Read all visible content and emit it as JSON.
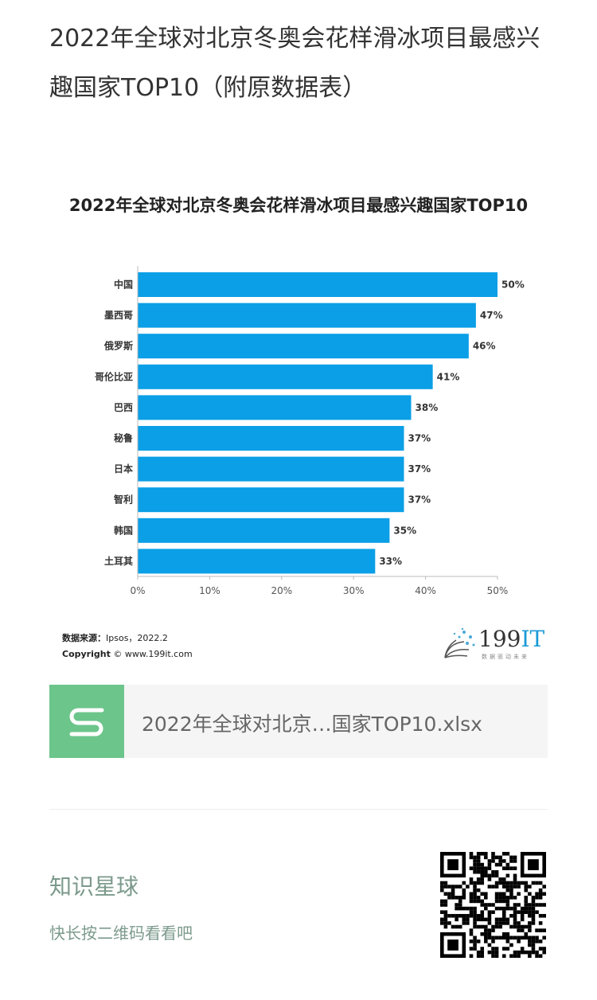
{
  "article": {
    "title": "2022年全球对北京冬奥会花样滑冰项目最感兴趣国家TOP10（附原数据表）"
  },
  "chart_data": {
    "type": "bar",
    "orientation": "horizontal",
    "title": "2022年全球对北京冬奥会花样滑冰项目最感兴趣国家TOP10",
    "categories": [
      "中国",
      "墨西哥",
      "俄罗斯",
      "哥伦比亚",
      "巴西",
      "秘鲁",
      "日本",
      "智利",
      "韩国",
      "土耳其"
    ],
    "values": [
      50,
      47,
      46,
      41,
      38,
      37,
      37,
      37,
      35,
      33
    ],
    "value_labels": [
      "50%",
      "47%",
      "46%",
      "41%",
      "38%",
      "37%",
      "37%",
      "37%",
      "35%",
      "33%"
    ],
    "xticks": [
      "0%",
      "10%",
      "20%",
      "30%",
      "40%",
      "50%"
    ],
    "xlim": [
      0,
      50
    ],
    "color": "#0a9fe6",
    "grid": false
  },
  "source": {
    "label": "数据来源：",
    "text": "Ipsos，2022.2",
    "copyright_label": "Copyright",
    "copyright_text": "© www.199it.com"
  },
  "logo": {
    "num": "199",
    "it": "IT",
    "tagline": "数据驱动未来"
  },
  "attachment": {
    "filename": "2022年全球对北京…国家TOP10.xlsx",
    "icon": "spreadsheet-s-icon",
    "color": "#6cc58b"
  },
  "footer": {
    "title": "知识星球",
    "subtitle": "快长按二维码看看吧"
  }
}
